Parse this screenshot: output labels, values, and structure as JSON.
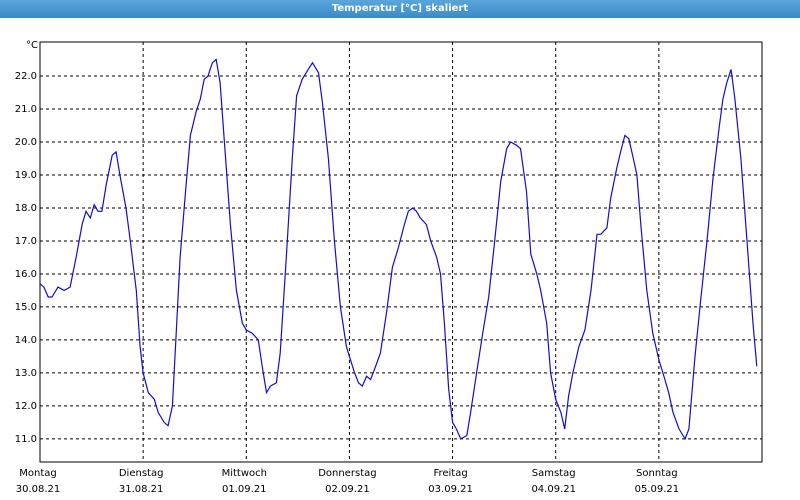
{
  "chart_data": {
    "type": "line",
    "title": "Temperatur [°C] skaliert",
    "y_label": "°C",
    "color": "#1010c8",
    "grid": true,
    "xlim": [
      0,
      168
    ],
    "ylim": [
      10.3,
      23.03
    ],
    "xticks": [
      {
        "value": 0,
        "label": "Montag",
        "date": "30.08.21"
      },
      {
        "value": 24,
        "label": "Dienstag",
        "date": "31.08.21"
      },
      {
        "value": 48,
        "label": "Mittwoch",
        "date": "01.09.21"
      },
      {
        "value": 72,
        "label": "Donnerstag",
        "date": "02.09.21"
      },
      {
        "value": 96,
        "label": "Freitag",
        "date": "03.09.21"
      },
      {
        "value": 120,
        "label": "Samstag",
        "date": "04.09.21"
      },
      {
        "value": 144,
        "label": "Sonntag",
        "date": "05.09.21"
      }
    ],
    "yticks": [
      {
        "value": 11,
        "label": "11.0"
      },
      {
        "value": 12,
        "label": "12.0"
      },
      {
        "value": 13,
        "label": "13.0"
      },
      {
        "value": 14,
        "label": "14.0"
      },
      {
        "value": 15,
        "label": "15.0"
      },
      {
        "value": 16,
        "label": "16.0"
      },
      {
        "value": 17,
        "label": "17.0"
      },
      {
        "value": 18,
        "label": "18.0"
      },
      {
        "value": 19,
        "label": "19.0"
      },
      {
        "value": 20,
        "label": "20.0"
      },
      {
        "value": 21,
        "label": "21.0"
      },
      {
        "value": 22,
        "label": "22.0"
      }
    ],
    "x": [
      0,
      0.9,
      1.9,
      2.8,
      4.2,
      5.6,
      7.0,
      8.4,
      9.8,
      10.7,
      11.7,
      12.6,
      13.5,
      14.4,
      15.4,
      16.8,
      17.7,
      18.6,
      20.0,
      21.0,
      22.4,
      23.3,
      24.0,
      25.2,
      26.6,
      27.5,
      28.9,
      29.8,
      30.8,
      31.7,
      32.6,
      34.0,
      35.0,
      36.3,
      37.3,
      38.2,
      39.1,
      40.1,
      41.0,
      41.9,
      42.9,
      44.3,
      45.7,
      47.1,
      48.0,
      49.4,
      50.8,
      51.7,
      52.7,
      53.6,
      55.0,
      55.9,
      57.3,
      58.7,
      59.7,
      61.0,
      62.4,
      63.4,
      64.8,
      65.7,
      67.1,
      68.5,
      69.9,
      71.3,
      72.0,
      73.2,
      74.1,
      75.0,
      76.0,
      76.9,
      77.8,
      79.2,
      80.6,
      82.0,
      83.4,
      84.8,
      85.7,
      86.7,
      87.6,
      88.5,
      89.9,
      90.9,
      92.3,
      93.2,
      94.1,
      95.1,
      96.0,
      96.9,
      97.9,
      99.3,
      100.2,
      101.6,
      103.0,
      104.4,
      105.8,
      107.2,
      108.6,
      109.5,
      110.9,
      111.8,
      113.2,
      114.2,
      115.6,
      116.5,
      117.9,
      118.8,
      120.0,
      121.2,
      122.1,
      123.0,
      124.0,
      125.4,
      126.8,
      128.2,
      129.6,
      130.5,
      131.9,
      132.8,
      134.2,
      135.1,
      136.1,
      137.0,
      137.9,
      138.9,
      139.8,
      141.2,
      142.6,
      144.0,
      145.4,
      146.3,
      147.3,
      148.7,
      150.1,
      151.0,
      152.4,
      153.8,
      155.2,
      156.6,
      158.0,
      158.9,
      159.8,
      160.8,
      161.7,
      163.1,
      164.5,
      165.9,
      166.8
    ],
    "values": [
      15.7,
      15.6,
      15.3,
      15.3,
      15.6,
      15.5,
      15.6,
      16.5,
      17.5,
      17.9,
      17.7,
      18.1,
      17.9,
      17.9,
      18.7,
      19.6,
      19.7,
      19.0,
      18.0,
      17.0,
      15.5,
      13.8,
      13.0,
      12.4,
      12.2,
      11.8,
      11.5,
      11.4,
      12.0,
      14.2,
      16.5,
      18.7,
      20.2,
      20.9,
      21.3,
      21.9,
      22.0,
      22.4,
      22.5,
      21.8,
      20.0,
      17.5,
      15.5,
      14.5,
      14.3,
      14.2,
      14.0,
      13.2,
      12.4,
      12.6,
      12.7,
      13.6,
      16.5,
      19.5,
      21.4,
      21.9,
      22.2,
      22.4,
      22.1,
      21.2,
      19.5,
      17.0,
      15.0,
      13.8,
      13.5,
      13.0,
      12.7,
      12.6,
      12.9,
      12.8,
      13.1,
      13.6,
      14.8,
      16.2,
      16.8,
      17.5,
      17.9,
      18.0,
      17.9,
      17.7,
      17.5,
      17.0,
      16.5,
      16.0,
      14.5,
      12.5,
      11.5,
      11.3,
      11.0,
      11.1,
      11.8,
      13.0,
      14.2,
      15.3,
      17.0,
      18.8,
      19.8,
      20.0,
      19.9,
      19.8,
      18.5,
      16.6,
      16.0,
      15.5,
      14.5,
      13.0,
      12.2,
      11.8,
      11.3,
      12.3,
      13.0,
      13.8,
      14.3,
      15.5,
      17.2,
      17.2,
      17.4,
      18.3,
      19.2,
      19.7,
      20.2,
      20.1,
      19.6,
      19.0,
      17.5,
      15.5,
      14.2,
      13.4,
      12.8,
      12.4,
      11.8,
      11.3,
      11.0,
      11.3,
      13.5,
      15.3,
      17.0,
      18.9,
      20.4,
      21.3,
      21.8,
      22.2,
      21.3,
      19.5,
      17.0,
      14.5,
      13.2
    ]
  }
}
